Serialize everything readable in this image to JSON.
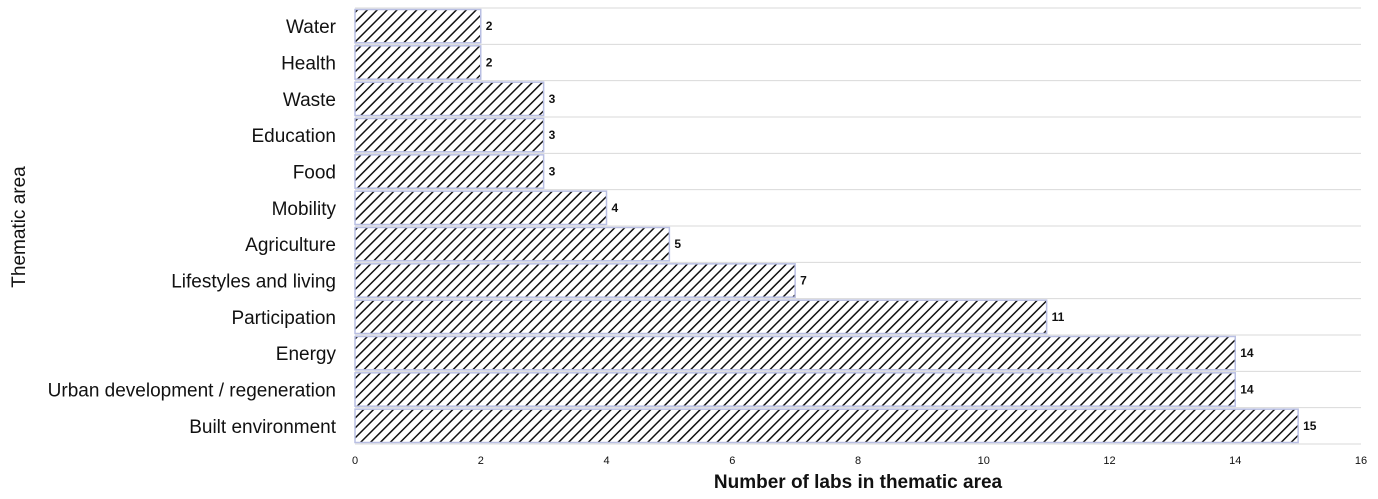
{
  "chart_data": {
    "type": "bar",
    "orientation": "horizontal",
    "categories": [
      "Water",
      "Health",
      "Waste",
      "Education",
      "Food",
      "Mobility",
      "Agriculture",
      "Lifestyles and living",
      "Participation",
      "Energy",
      "Urban development / regeneration",
      "Built environment"
    ],
    "values": [
      2,
      2,
      3,
      3,
      3,
      4,
      5,
      7,
      11,
      14,
      14,
      15
    ],
    "data_labels": [
      "2",
      "2",
      "3",
      "3",
      "3",
      "4",
      "5",
      "7",
      "11",
      "14",
      "14",
      "15"
    ],
    "xlabel": "Number of labs in thematic area",
    "ylabel": "Thematic area",
    "xlim": [
      0,
      16
    ],
    "x_ticks": [
      "0",
      "2",
      "4",
      "6",
      "8",
      "10",
      "12",
      "14",
      "16"
    ],
    "grid": "horizontal category separators",
    "legend": "none",
    "bar_fill": "diagonal hatch",
    "colors": {
      "hatch": "#111111",
      "bar_outline": "#b9bfe3",
      "grid": "#d9d9d9",
      "background": "#ffffff"
    }
  }
}
